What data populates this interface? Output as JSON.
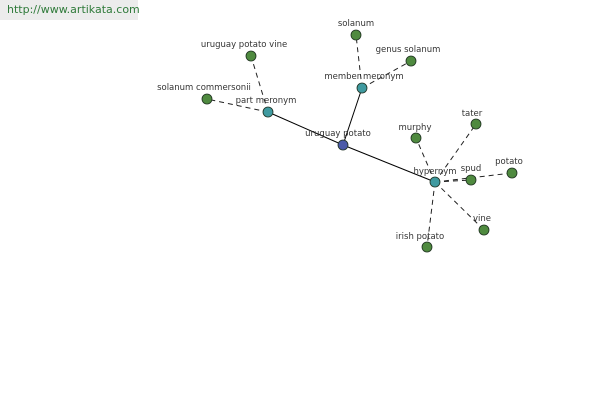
{
  "source_link": "http://www.artikata.com",
  "colors": {
    "root": "#4b5aa8",
    "relation": "#3f9aa0",
    "leaf": "#4f8a3f",
    "solid_edge": "#000000",
    "dashed_edge": "#222222",
    "link_text": "#2f7a3a"
  },
  "graph": {
    "nodes": [
      {
        "id": "root",
        "label": "uruguay potato",
        "kind": "root"
      },
      {
        "id": "part",
        "label": "part meronym",
        "kind": "relation"
      },
      {
        "id": "member",
        "label": "member meronym",
        "kind": "relation"
      },
      {
        "id": "hyper",
        "label": "hypernym",
        "kind": "relation"
      },
      {
        "id": "upv",
        "label": "uruguay potato vine",
        "kind": "leaf"
      },
      {
        "id": "sc",
        "label": "solanum commersonii",
        "kind": "leaf"
      },
      {
        "id": "solanum",
        "label": "solanum",
        "kind": "leaf"
      },
      {
        "id": "genus",
        "label": "genus solanum",
        "kind": "leaf"
      },
      {
        "id": "murphy",
        "label": "murphy",
        "kind": "leaf"
      },
      {
        "id": "tater",
        "label": "tater",
        "kind": "leaf"
      },
      {
        "id": "spud",
        "label": "spud",
        "kind": "leaf"
      },
      {
        "id": "potato",
        "label": "potato",
        "kind": "leaf"
      },
      {
        "id": "vine",
        "label": "vine",
        "kind": "leaf"
      },
      {
        "id": "irish",
        "label": "irish potato",
        "kind": "leaf"
      }
    ],
    "edges": [
      {
        "from": "root",
        "to": "part",
        "style": "solid"
      },
      {
        "from": "root",
        "to": "member",
        "style": "solid"
      },
      {
        "from": "root",
        "to": "hyper",
        "style": "solid"
      },
      {
        "from": "part",
        "to": "upv",
        "style": "dashed"
      },
      {
        "from": "part",
        "to": "sc",
        "style": "dashed"
      },
      {
        "from": "member",
        "to": "solanum",
        "style": "dashed"
      },
      {
        "from": "member",
        "to": "genus",
        "style": "dashed"
      },
      {
        "from": "hyper",
        "to": "murphy",
        "style": "dashed"
      },
      {
        "from": "hyper",
        "to": "tater",
        "style": "dashed"
      },
      {
        "from": "hyper",
        "to": "spud",
        "style": "dashed"
      },
      {
        "from": "hyper",
        "to": "potato",
        "style": "dashed"
      },
      {
        "from": "hyper",
        "to": "vine",
        "style": "dashed"
      },
      {
        "from": "hyper",
        "to": "irish",
        "style": "dashed"
      }
    ]
  }
}
